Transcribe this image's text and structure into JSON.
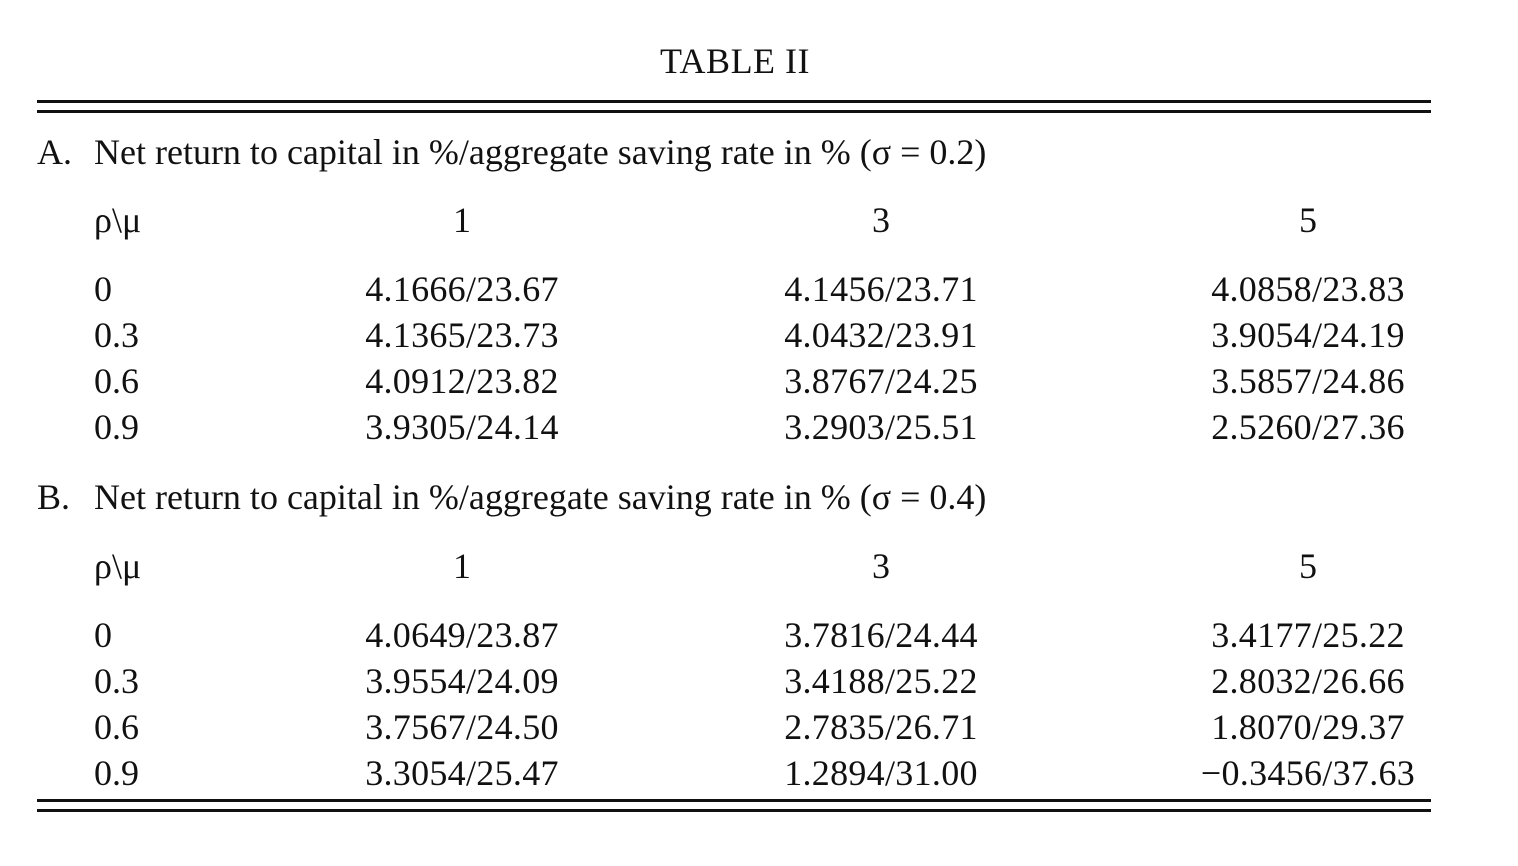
{
  "table": {
    "title": "TABLE II",
    "panels": [
      {
        "letter": "A.",
        "heading": "Net return to capital in %/aggregate saving rate in % (σ = 0.2)",
        "corner_label": "ρ\\μ",
        "columns": [
          "1",
          "3",
          "5"
        ],
        "rows": [
          {
            "label": "0",
            "cells": [
              "4.1666/23.67",
              "4.1456/23.71",
              "4.0858/23.83"
            ]
          },
          {
            "label": "0.3",
            "cells": [
              "4.1365/23.73",
              "4.0432/23.91",
              "3.9054/24.19"
            ]
          },
          {
            "label": "0.6",
            "cells": [
              "4.0912/23.82",
              "3.8767/24.25",
              "3.5857/24.86"
            ]
          },
          {
            "label": "0.9",
            "cells": [
              "3.9305/24.14",
              "3.2903/25.51",
              "2.5260/27.36"
            ]
          }
        ]
      },
      {
        "letter": "B.",
        "heading": "Net return to capital in %/aggregate saving rate in % (σ = 0.4)",
        "corner_label": "ρ\\μ",
        "columns": [
          "1",
          "3",
          "5"
        ],
        "rows": [
          {
            "label": "0",
            "cells": [
              "4.0649/23.87",
              "3.7816/24.44",
              "3.4177/25.22"
            ]
          },
          {
            "label": "0.3",
            "cells": [
              "3.9554/24.09",
              "3.4188/25.22",
              "2.8032/26.66"
            ]
          },
          {
            "label": "0.6",
            "cells": [
              "3.7567/24.50",
              "2.7835/26.71",
              "1.8070/29.37"
            ]
          },
          {
            "label": "0.9",
            "cells": [
              "3.3054/25.47",
              "1.2894/31.00",
              "−0.3456/37.63"
            ]
          }
        ]
      }
    ]
  }
}
